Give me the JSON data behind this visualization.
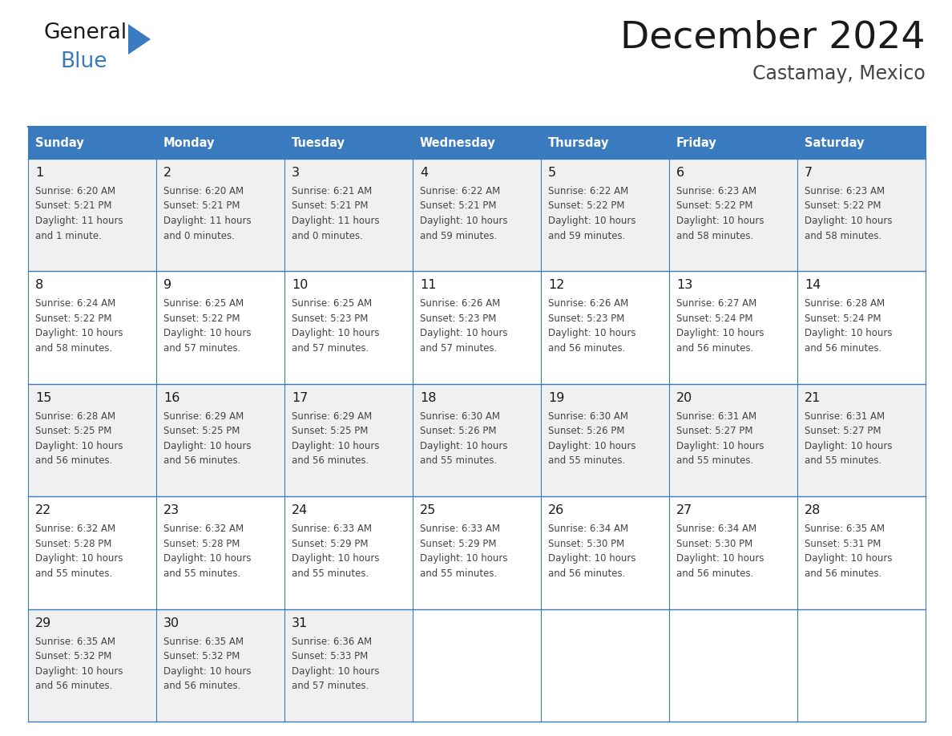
{
  "title": "December 2024",
  "subtitle": "Castamay, Mexico",
  "header_color": "#3a7abf",
  "header_text_color": "#ffffff",
  "cell_bg_even": "#f0f0f0",
  "cell_bg_odd": "#ffffff",
  "border_color": "#3a7abf",
  "text_color": "#333333",
  "day_names": [
    "Sunday",
    "Monday",
    "Tuesday",
    "Wednesday",
    "Thursday",
    "Friday",
    "Saturday"
  ],
  "logo_color": "#3a7abf",
  "logo_dark_color": "#1a1a1a",
  "days": [
    {
      "day": 1,
      "col": 0,
      "row": 0,
      "sunrise": "6:20 AM",
      "sunset": "5:21 PM",
      "daylight_line1": "Daylight: 11 hours",
      "daylight_line2": "and 1 minute."
    },
    {
      "day": 2,
      "col": 1,
      "row": 0,
      "sunrise": "6:20 AM",
      "sunset": "5:21 PM",
      "daylight_line1": "Daylight: 11 hours",
      "daylight_line2": "and 0 minutes."
    },
    {
      "day": 3,
      "col": 2,
      "row": 0,
      "sunrise": "6:21 AM",
      "sunset": "5:21 PM",
      "daylight_line1": "Daylight: 11 hours",
      "daylight_line2": "and 0 minutes."
    },
    {
      "day": 4,
      "col": 3,
      "row": 0,
      "sunrise": "6:22 AM",
      "sunset": "5:21 PM",
      "daylight_line1": "Daylight: 10 hours",
      "daylight_line2": "and 59 minutes."
    },
    {
      "day": 5,
      "col": 4,
      "row": 0,
      "sunrise": "6:22 AM",
      "sunset": "5:22 PM",
      "daylight_line1": "Daylight: 10 hours",
      "daylight_line2": "and 59 minutes."
    },
    {
      "day": 6,
      "col": 5,
      "row": 0,
      "sunrise": "6:23 AM",
      "sunset": "5:22 PM",
      "daylight_line1": "Daylight: 10 hours",
      "daylight_line2": "and 58 minutes."
    },
    {
      "day": 7,
      "col": 6,
      "row": 0,
      "sunrise": "6:23 AM",
      "sunset": "5:22 PM",
      "daylight_line1": "Daylight: 10 hours",
      "daylight_line2": "and 58 minutes."
    },
    {
      "day": 8,
      "col": 0,
      "row": 1,
      "sunrise": "6:24 AM",
      "sunset": "5:22 PM",
      "daylight_line1": "Daylight: 10 hours",
      "daylight_line2": "and 58 minutes."
    },
    {
      "day": 9,
      "col": 1,
      "row": 1,
      "sunrise": "6:25 AM",
      "sunset": "5:22 PM",
      "daylight_line1": "Daylight: 10 hours",
      "daylight_line2": "and 57 minutes."
    },
    {
      "day": 10,
      "col": 2,
      "row": 1,
      "sunrise": "6:25 AM",
      "sunset": "5:23 PM",
      "daylight_line1": "Daylight: 10 hours",
      "daylight_line2": "and 57 minutes."
    },
    {
      "day": 11,
      "col": 3,
      "row": 1,
      "sunrise": "6:26 AM",
      "sunset": "5:23 PM",
      "daylight_line1": "Daylight: 10 hours",
      "daylight_line2": "and 57 minutes."
    },
    {
      "day": 12,
      "col": 4,
      "row": 1,
      "sunrise": "6:26 AM",
      "sunset": "5:23 PM",
      "daylight_line1": "Daylight: 10 hours",
      "daylight_line2": "and 56 minutes."
    },
    {
      "day": 13,
      "col": 5,
      "row": 1,
      "sunrise": "6:27 AM",
      "sunset": "5:24 PM",
      "daylight_line1": "Daylight: 10 hours",
      "daylight_line2": "and 56 minutes."
    },
    {
      "day": 14,
      "col": 6,
      "row": 1,
      "sunrise": "6:28 AM",
      "sunset": "5:24 PM",
      "daylight_line1": "Daylight: 10 hours",
      "daylight_line2": "and 56 minutes."
    },
    {
      "day": 15,
      "col": 0,
      "row": 2,
      "sunrise": "6:28 AM",
      "sunset": "5:25 PM",
      "daylight_line1": "Daylight: 10 hours",
      "daylight_line2": "and 56 minutes."
    },
    {
      "day": 16,
      "col": 1,
      "row": 2,
      "sunrise": "6:29 AM",
      "sunset": "5:25 PM",
      "daylight_line1": "Daylight: 10 hours",
      "daylight_line2": "and 56 minutes."
    },
    {
      "day": 17,
      "col": 2,
      "row": 2,
      "sunrise": "6:29 AM",
      "sunset": "5:25 PM",
      "daylight_line1": "Daylight: 10 hours",
      "daylight_line2": "and 56 minutes."
    },
    {
      "day": 18,
      "col": 3,
      "row": 2,
      "sunrise": "6:30 AM",
      "sunset": "5:26 PM",
      "daylight_line1": "Daylight: 10 hours",
      "daylight_line2": "and 55 minutes."
    },
    {
      "day": 19,
      "col": 4,
      "row": 2,
      "sunrise": "6:30 AM",
      "sunset": "5:26 PM",
      "daylight_line1": "Daylight: 10 hours",
      "daylight_line2": "and 55 minutes."
    },
    {
      "day": 20,
      "col": 5,
      "row": 2,
      "sunrise": "6:31 AM",
      "sunset": "5:27 PM",
      "daylight_line1": "Daylight: 10 hours",
      "daylight_line2": "and 55 minutes."
    },
    {
      "day": 21,
      "col": 6,
      "row": 2,
      "sunrise": "6:31 AM",
      "sunset": "5:27 PM",
      "daylight_line1": "Daylight: 10 hours",
      "daylight_line2": "and 55 minutes."
    },
    {
      "day": 22,
      "col": 0,
      "row": 3,
      "sunrise": "6:32 AM",
      "sunset": "5:28 PM",
      "daylight_line1": "Daylight: 10 hours",
      "daylight_line2": "and 55 minutes."
    },
    {
      "day": 23,
      "col": 1,
      "row": 3,
      "sunrise": "6:32 AM",
      "sunset": "5:28 PM",
      "daylight_line1": "Daylight: 10 hours",
      "daylight_line2": "and 55 minutes."
    },
    {
      "day": 24,
      "col": 2,
      "row": 3,
      "sunrise": "6:33 AM",
      "sunset": "5:29 PM",
      "daylight_line1": "Daylight: 10 hours",
      "daylight_line2": "and 55 minutes."
    },
    {
      "day": 25,
      "col": 3,
      "row": 3,
      "sunrise": "6:33 AM",
      "sunset": "5:29 PM",
      "daylight_line1": "Daylight: 10 hours",
      "daylight_line2": "and 55 minutes."
    },
    {
      "day": 26,
      "col": 4,
      "row": 3,
      "sunrise": "6:34 AM",
      "sunset": "5:30 PM",
      "daylight_line1": "Daylight: 10 hours",
      "daylight_line2": "and 56 minutes."
    },
    {
      "day": 27,
      "col": 5,
      "row": 3,
      "sunrise": "6:34 AM",
      "sunset": "5:30 PM",
      "daylight_line1": "Daylight: 10 hours",
      "daylight_line2": "and 56 minutes."
    },
    {
      "day": 28,
      "col": 6,
      "row": 3,
      "sunrise": "6:35 AM",
      "sunset": "5:31 PM",
      "daylight_line1": "Daylight: 10 hours",
      "daylight_line2": "and 56 minutes."
    },
    {
      "day": 29,
      "col": 0,
      "row": 4,
      "sunrise": "6:35 AM",
      "sunset": "5:32 PM",
      "daylight_line1": "Daylight: 10 hours",
      "daylight_line2": "and 56 minutes."
    },
    {
      "day": 30,
      "col": 1,
      "row": 4,
      "sunrise": "6:35 AM",
      "sunset": "5:32 PM",
      "daylight_line1": "Daylight: 10 hours",
      "daylight_line2": "and 56 minutes."
    },
    {
      "day": 31,
      "col": 2,
      "row": 4,
      "sunrise": "6:36 AM",
      "sunset": "5:33 PM",
      "daylight_line1": "Daylight: 10 hours",
      "daylight_line2": "and 57 minutes."
    }
  ],
  "num_rows": 5,
  "num_cols": 7
}
